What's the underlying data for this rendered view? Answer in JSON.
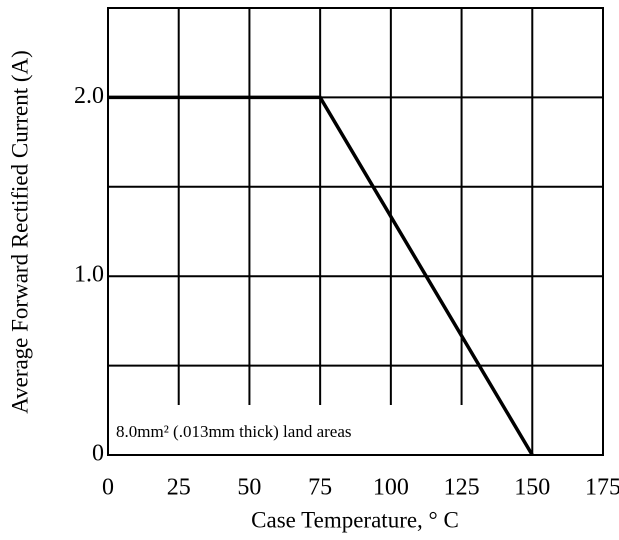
{
  "chart_data": {
    "type": "line",
    "x_label": "Case  Temperature, ° C",
    "y_label": "Average Forward Rectified Current (A)",
    "annotation": "8.0mm² (.013mm thick) land areas",
    "x": [
      0,
      75,
      150
    ],
    "series": [
      {
        "values": [
          2,
          2,
          0
        ],
        "color": "#000000"
      }
    ],
    "xlim": [
      0,
      175
    ],
    "xticks": [
      0,
      25,
      50,
      75,
      100,
      125,
      150,
      175
    ],
    "ylim": [
      0,
      2.5
    ],
    "yticks": [
      0,
      {
        "value": 1,
        "label": "1.0"
      },
      {
        "value": 2,
        "label": "2.0"
      }
    ],
    "yminor": [
      0.5,
      1.5
    ],
    "grid": true
  }
}
